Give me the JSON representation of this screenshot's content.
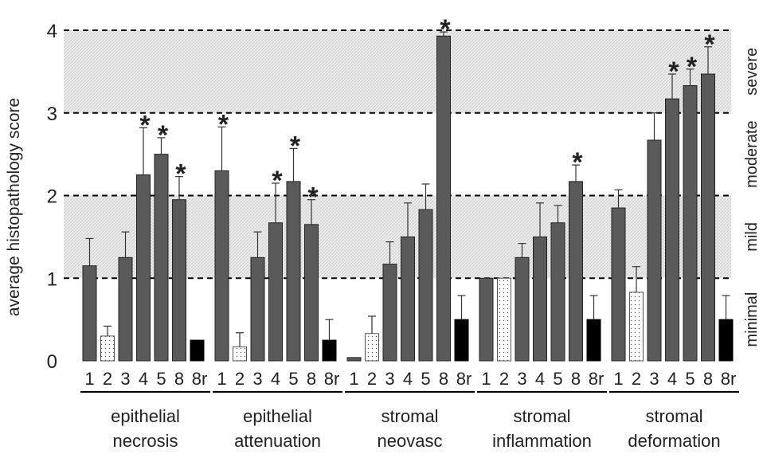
{
  "chart_data": {
    "type": "bar",
    "ylabel": "average histopathology score",
    "ylim": [
      0,
      4
    ],
    "yticks": [
      "0",
      "1",
      "2",
      "3",
      "4"
    ],
    "grid": "dashed lines at 1, 2, 3, 4; shaded bands 1–2 and 3–4",
    "severity_labels": [
      "minimal",
      "mild",
      "moderate",
      "severe"
    ],
    "colors": {
      "gray_bar": "#5a5a5a",
      "dotted_bar": "#ffffff",
      "black_bar": "#000000",
      "band": "#e6e6e6"
    },
    "groups": [
      {
        "label": [
          "epithelial",
          "necrosis"
        ],
        "categories": [
          "1",
          "2",
          "3",
          "4",
          "5",
          "8",
          "8r"
        ],
        "values": [
          1.15,
          0.3,
          1.25,
          2.25,
          2.5,
          1.95,
          0.25
        ],
        "errors": [
          0.33,
          0.12,
          0.31,
          0.57,
          0.2,
          0.28,
          0
        ],
        "significant": [
          false,
          false,
          false,
          true,
          true,
          true,
          false
        ]
      },
      {
        "label": [
          "epithelial",
          "attenuation"
        ],
        "categories": [
          "1",
          "2",
          "3",
          "4",
          "5",
          "8",
          "8r"
        ],
        "values": [
          2.3,
          0.17,
          1.25,
          1.67,
          2.17,
          1.65,
          0.25
        ],
        "errors": [
          0.53,
          0.17,
          0.31,
          0.48,
          0.4,
          0.3,
          0.25
        ],
        "significant": [
          true,
          false,
          false,
          true,
          true,
          true,
          false
        ]
      },
      {
        "label": [
          "stromal",
          "neovasc"
        ],
        "categories": [
          "1",
          "2",
          "3",
          "4",
          "5",
          "8",
          "8r"
        ],
        "values": [
          0.04,
          0.33,
          1.17,
          1.5,
          1.83,
          3.93,
          0.5
        ],
        "errors": [
          0,
          0.21,
          0.27,
          0.41,
          0.31,
          0.05,
          0.29
        ],
        "significant": [
          false,
          false,
          false,
          false,
          false,
          true,
          false
        ]
      },
      {
        "label": [
          "stromal",
          "inflammation"
        ],
        "categories": [
          "1",
          "2",
          "3",
          "4",
          "5",
          "8",
          "8r"
        ],
        "values": [
          1.0,
          1.0,
          1.25,
          1.5,
          1.67,
          2.17,
          0.5
        ],
        "errors": [
          0,
          0,
          0.17,
          0.41,
          0.21,
          0.2,
          0.29
        ],
        "significant": [
          false,
          false,
          false,
          false,
          false,
          true,
          false
        ]
      },
      {
        "label": [
          "stromal",
          "deformation"
        ],
        "categories": [
          "1",
          "2",
          "3",
          "4",
          "5",
          "8",
          "8r"
        ],
        "values": [
          1.85,
          0.83,
          2.67,
          3.17,
          3.33,
          3.47,
          0.5
        ],
        "errors": [
          0.22,
          0.31,
          0.33,
          0.3,
          0.2,
          0.33,
          0.29
        ],
        "significant": [
          false,
          false,
          false,
          true,
          true,
          true,
          false
        ]
      }
    ]
  }
}
